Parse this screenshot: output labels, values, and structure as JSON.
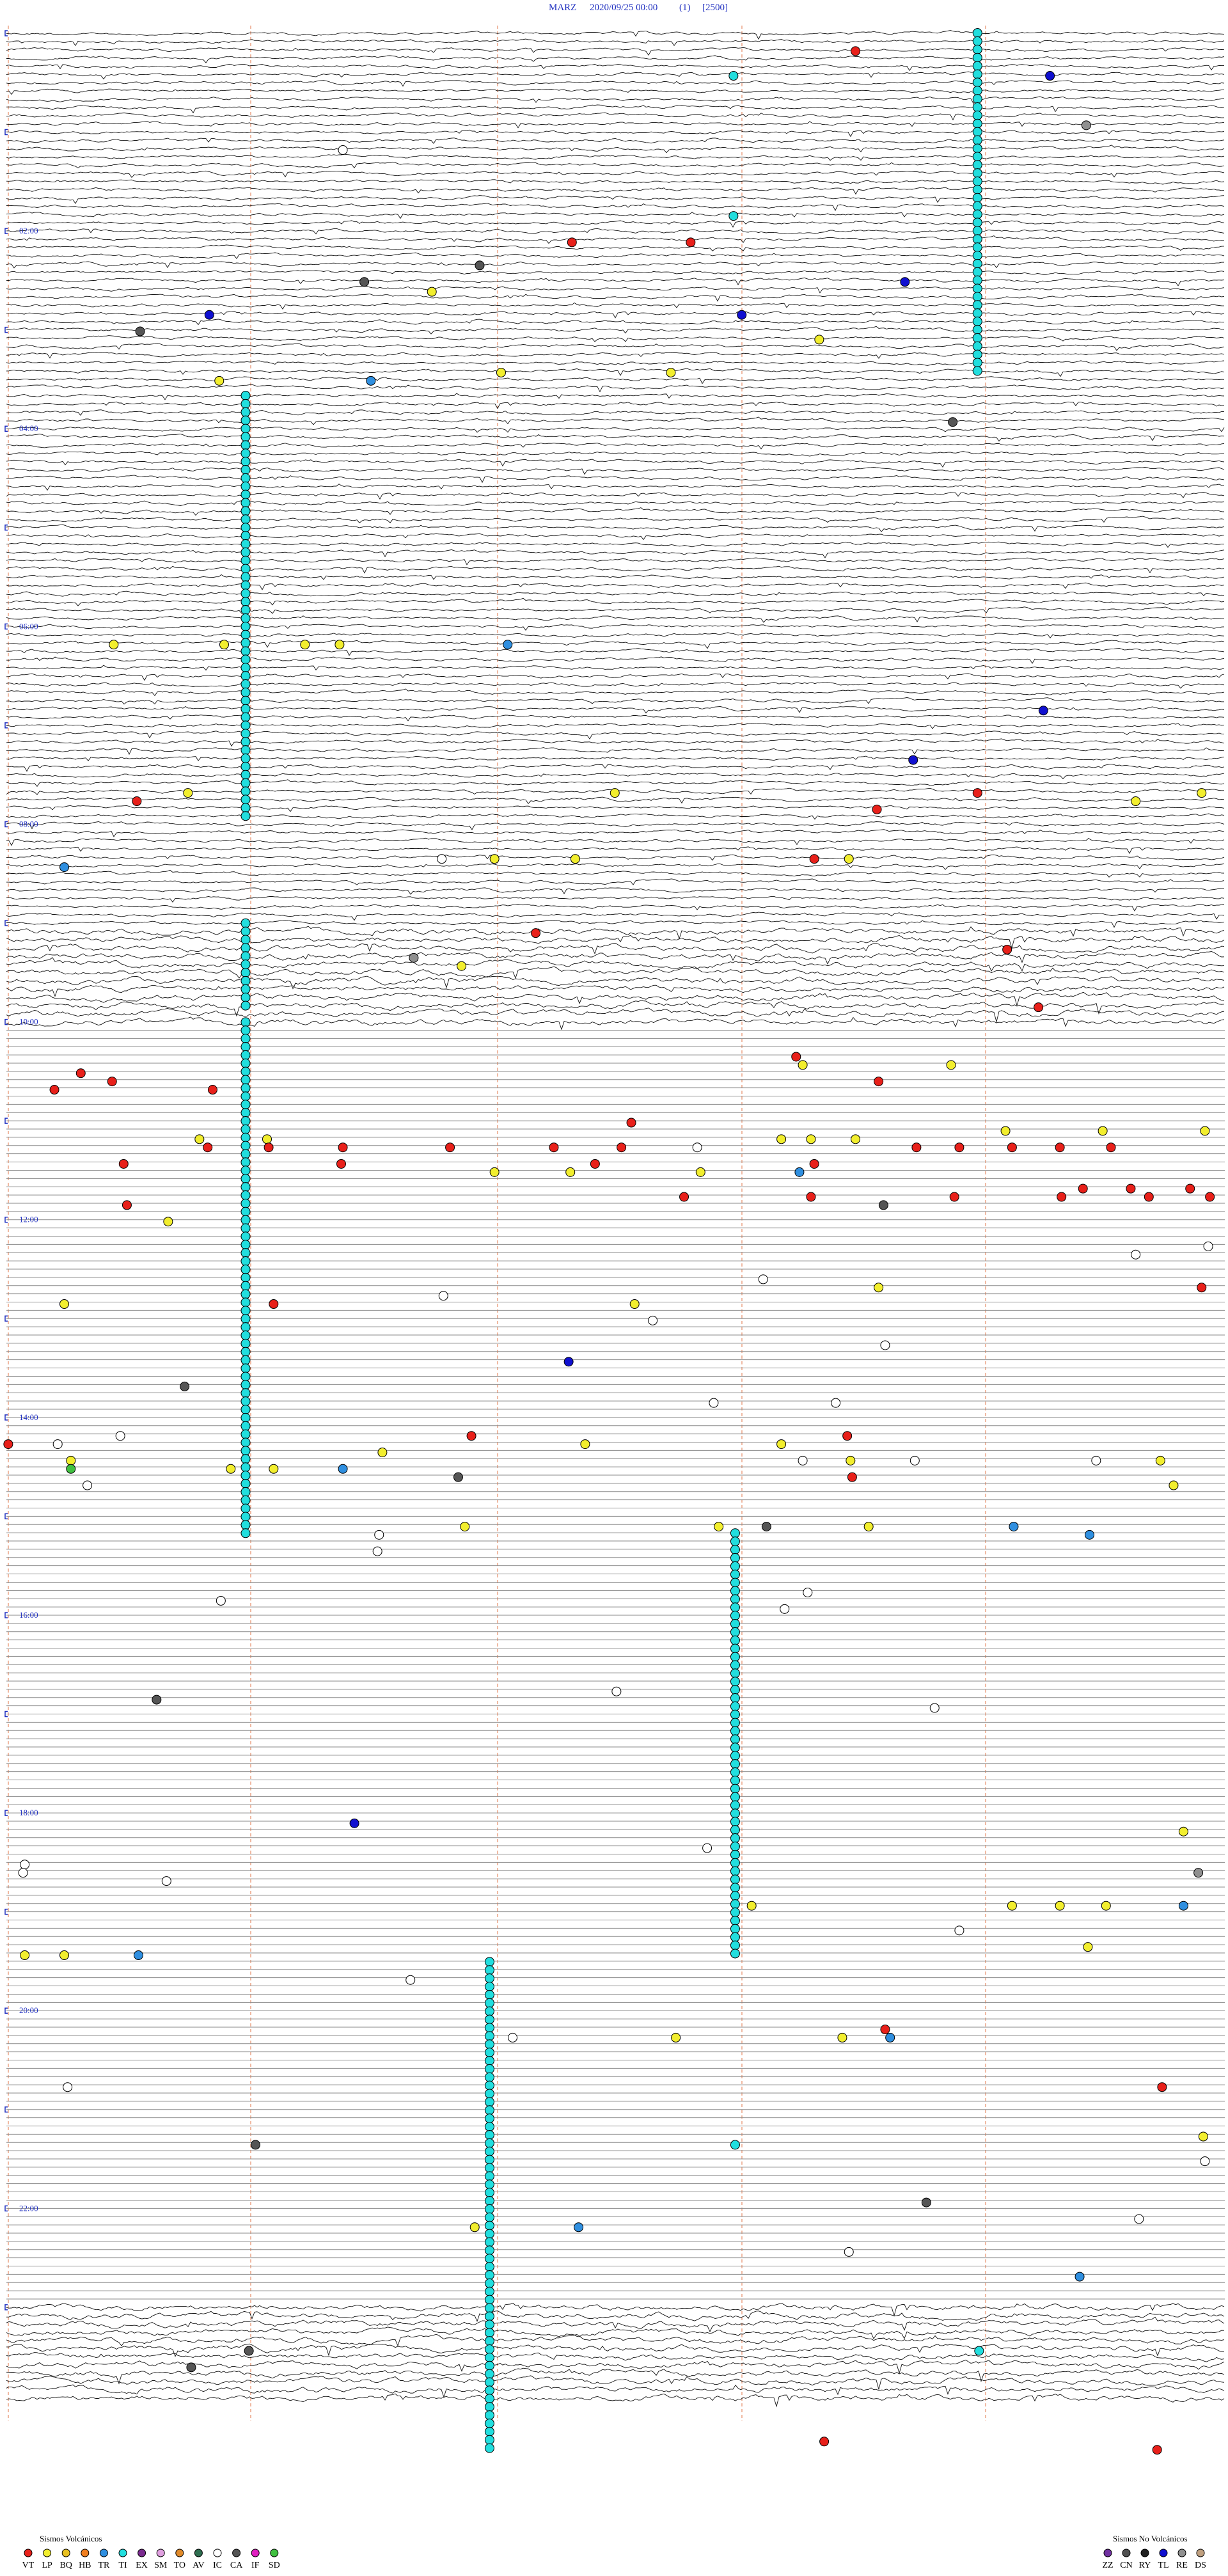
{
  "header": {
    "station": "MARZ",
    "datetime": "2020/09/25 00:00",
    "channel": "(1)",
    "scale": "[2500]"
  },
  "hour_labels": [
    "02:00",
    "04:00",
    "06:00",
    "08:00",
    "10:00",
    "12:00",
    "14:00",
    "16:00",
    "18:00",
    "20:00",
    "22:00"
  ],
  "legend": {
    "volcanic": {
      "title": "Sismos Volcánicos",
      "items": [
        {
          "code": "VT",
          "color": "#e8201a"
        },
        {
          "code": "LP",
          "color": "#f2ee2e"
        },
        {
          "code": "BQ",
          "color": "#e8c020"
        },
        {
          "code": "HB",
          "color": "#f07f20"
        },
        {
          "code": "TR",
          "color": "#2f8fe0"
        },
        {
          "code": "TI",
          "color": "#22dede"
        },
        {
          "code": "EX",
          "color": "#7a2a8f"
        },
        {
          "code": "SM",
          "color": "#e0a0e0"
        },
        {
          "code": "TO",
          "color": "#e08a2a"
        },
        {
          "code": "AV",
          "color": "#2e6e50"
        },
        {
          "code": "IC",
          "color": "#ffffff"
        },
        {
          "code": "CA",
          "color": "#555555"
        },
        {
          "code": "IF",
          "color": "#e020c0"
        },
        {
          "code": "SD",
          "color": "#40c040"
        }
      ]
    },
    "non_volcanic": {
      "title": "Sismos No Volcánicos",
      "items": [
        {
          "code": "ZZ",
          "color": "#7030a0"
        },
        {
          "code": "CN",
          "color": "#505050"
        },
        {
          "code": "RY",
          "color": "#202020"
        },
        {
          "code": "TL",
          "color": "#1010d0"
        },
        {
          "code": "RE",
          "color": "#909090"
        },
        {
          "code": "DS",
          "color": "#c0a080"
        }
      ]
    }
  }
}
